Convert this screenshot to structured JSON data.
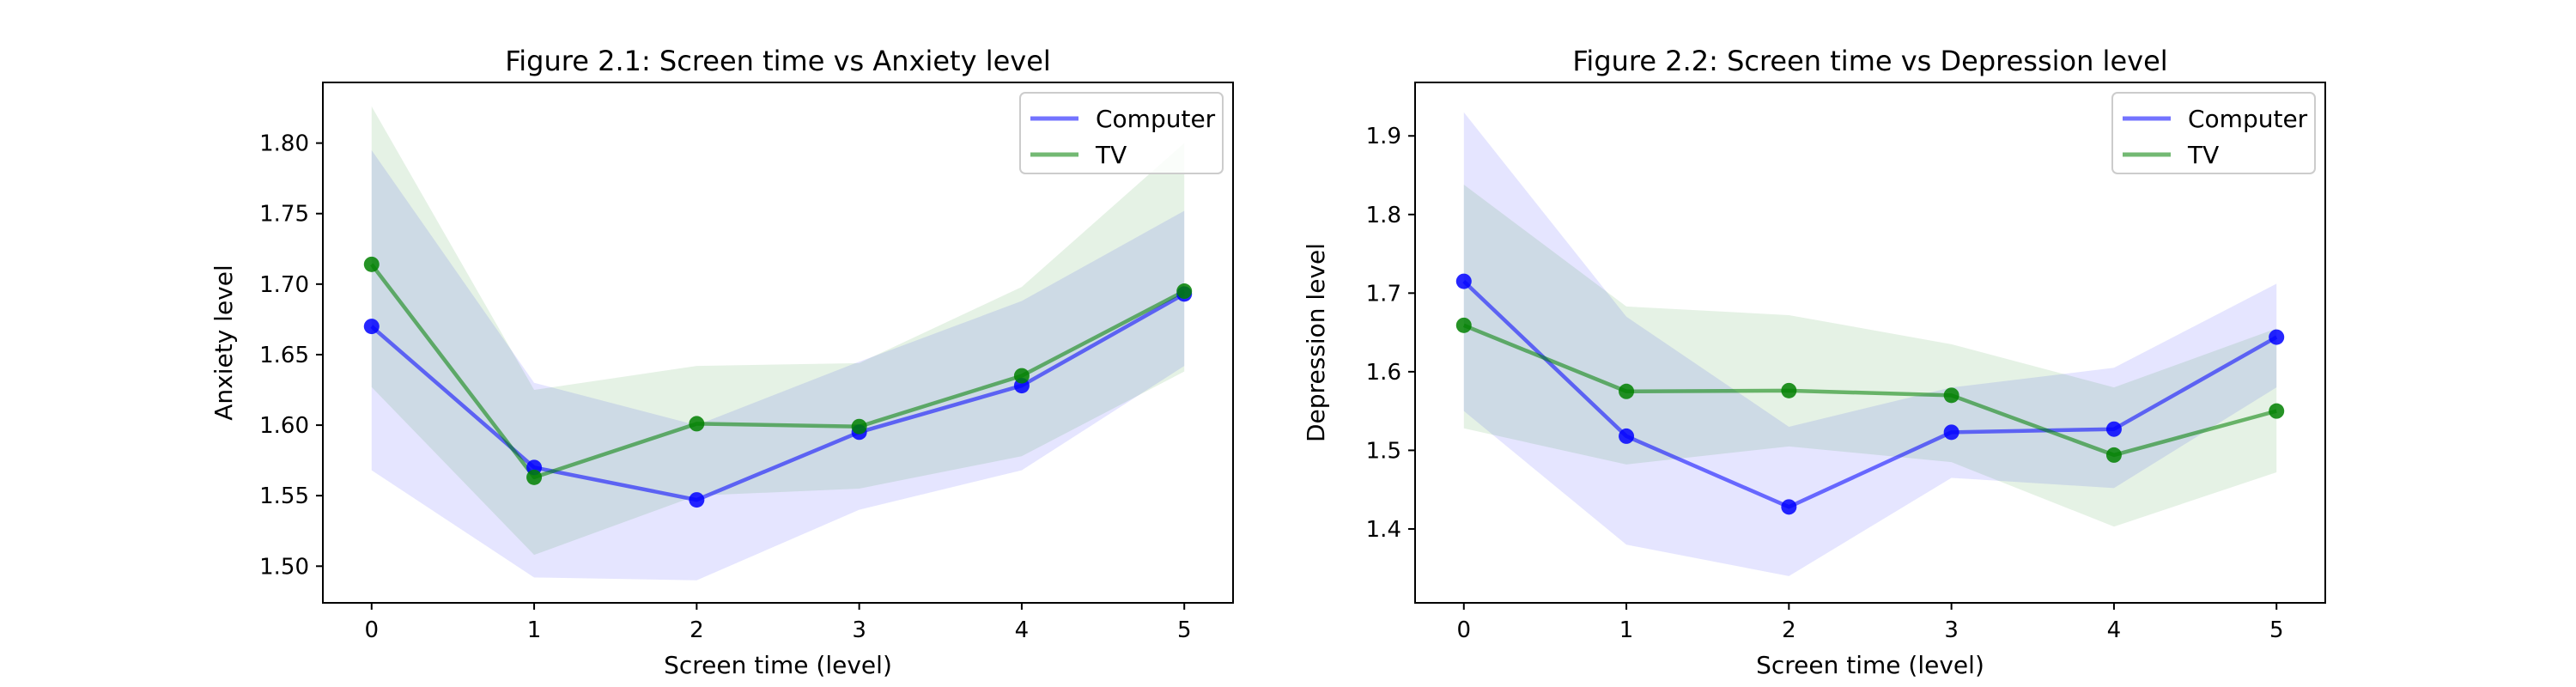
{
  "chart_data": [
    {
      "type": "line",
      "title": "Figure 2.1: Screen time vs Anxiety level",
      "xlabel": "Screen time (level)",
      "ylabel": "Anxiety level",
      "x": [
        0,
        1,
        2,
        3,
        4,
        5
      ],
      "xticks": [
        "0",
        "1",
        "2",
        "3",
        "4",
        "5"
      ],
      "yticks": [
        "1.50",
        "1.55",
        "1.60",
        "1.65",
        "1.70",
        "1.75",
        "1.80"
      ],
      "ytick_values": [
        1.5,
        1.55,
        1.6,
        1.65,
        1.7,
        1.75,
        1.8
      ],
      "xlim": [
        -0.3,
        5.3
      ],
      "ylim": [
        1.474,
        1.843
      ],
      "grid": false,
      "legend_position": "top-right",
      "series": [
        {
          "name": "Computer",
          "color": "#0000ff",
          "values": [
            1.67,
            1.57,
            1.547,
            1.595,
            1.628,
            1.693
          ],
          "band_low": [
            1.568,
            1.492,
            1.49,
            1.54,
            1.568,
            1.642
          ],
          "band_high": [
            1.795,
            1.63,
            1.6,
            1.645,
            1.688,
            1.752
          ]
        },
        {
          "name": "TV",
          "color": "#008000",
          "values": [
            1.714,
            1.563,
            1.601,
            1.599,
            1.635,
            1.695
          ],
          "band_low": [
            1.627,
            1.508,
            1.55,
            1.555,
            1.578,
            1.638
          ],
          "band_high": [
            1.826,
            1.625,
            1.642,
            1.644,
            1.698,
            1.8
          ]
        }
      ]
    },
    {
      "type": "line",
      "title": "Figure 2.2: Screen time vs Depression level",
      "xlabel": "Screen time (level)",
      "ylabel": "Depression level",
      "x": [
        0,
        1,
        2,
        3,
        4,
        5
      ],
      "xticks": [
        "0",
        "1",
        "2",
        "3",
        "4",
        "5"
      ],
      "yticks": [
        "1.4",
        "1.5",
        "1.6",
        "1.7",
        "1.8",
        "1.9"
      ],
      "ytick_values": [
        1.4,
        1.5,
        1.6,
        1.7,
        1.8,
        1.9
      ],
      "xlim": [
        -0.3,
        5.3
      ],
      "ylim": [
        1.306,
        1.968
      ],
      "grid": false,
      "legend_position": "top-right",
      "series": [
        {
          "name": "Computer",
          "color": "#0000ff",
          "values": [
            1.715,
            1.518,
            1.428,
            1.523,
            1.527,
            1.644
          ],
          "band_low": [
            1.55,
            1.38,
            1.34,
            1.465,
            1.452,
            1.58
          ],
          "band_high": [
            1.93,
            1.67,
            1.53,
            1.58,
            1.605,
            1.712
          ]
        },
        {
          "name": "TV",
          "color": "#008000",
          "values": [
            1.659,
            1.575,
            1.576,
            1.57,
            1.494,
            1.55
          ],
          "band_low": [
            1.528,
            1.482,
            1.505,
            1.485,
            1.403,
            1.472
          ],
          "band_high": [
            1.838,
            1.683,
            1.672,
            1.635,
            1.58,
            1.655
          ]
        }
      ]
    }
  ]
}
